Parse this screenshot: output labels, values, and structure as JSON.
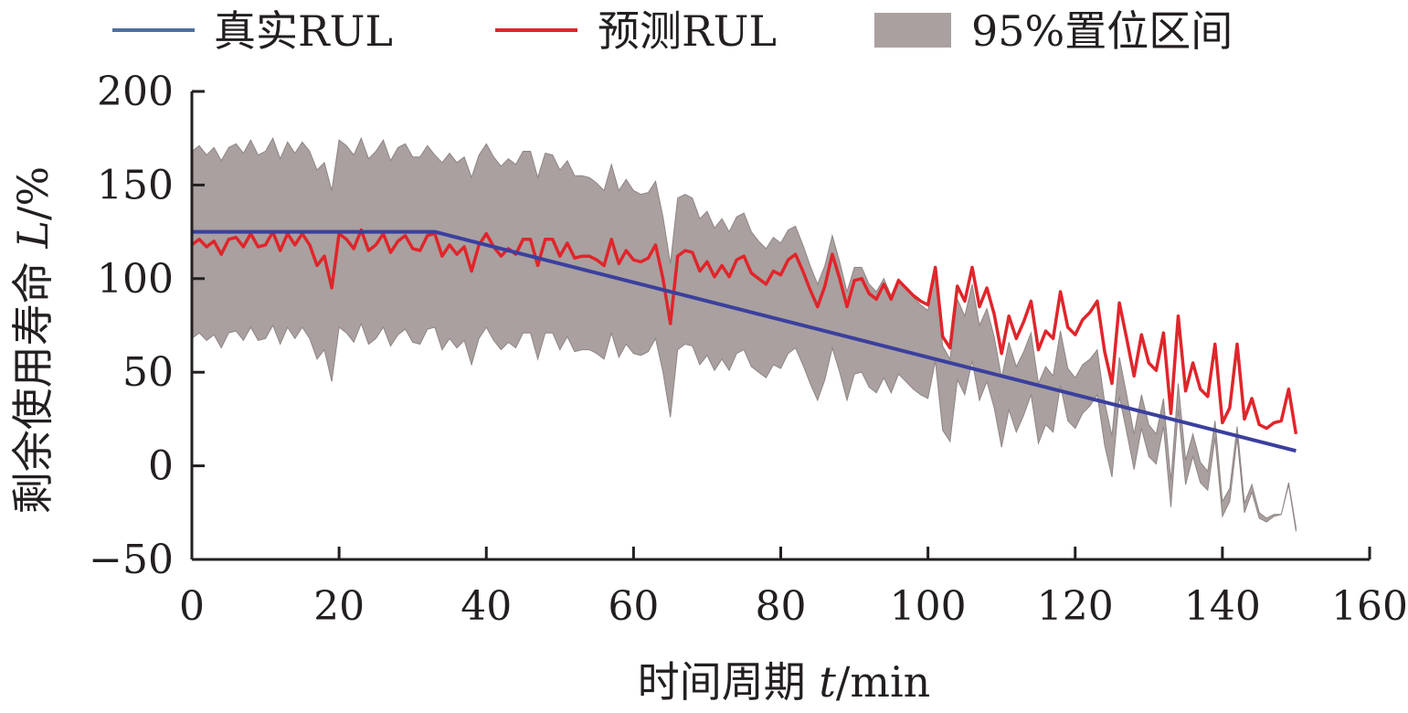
{
  "chart_data": {
    "type": "line",
    "xlabel_prefix": "时间周期 ",
    "xlabel_var": "t",
    "xlabel_unit": "/min",
    "ylabel_prefix": "剩余使用寿命 ",
    "ylabel_var": "L",
    "ylabel_unit": "/%",
    "xlim": [
      0,
      160
    ],
    "ylim": [
      -50,
      200
    ],
    "xticks": [
      0,
      20,
      40,
      60,
      80,
      100,
      120,
      140,
      160
    ],
    "yticks": [
      -50,
      0,
      50,
      100,
      150,
      200
    ],
    "ytick_labels": [
      "−50",
      "0",
      "50",
      "100",
      "150",
      "200"
    ],
    "grid": false,
    "legend_position": "top",
    "legend": [
      {
        "label": "真实RUL",
        "kind": "line",
        "color": "#4e6fa0"
      },
      {
        "label": "预测RUL",
        "kind": "line",
        "color": "#e0252b"
      },
      {
        "label": "95%置位区间",
        "kind": "area",
        "color": "#a9a09f"
      }
    ],
    "colors": {
      "true": "#3b3f9e",
      "pred": "#e0252b",
      "band": "#a9a09f",
      "band_edge": "#8e8584",
      "axis": "#231f20"
    },
    "series": [
      {
        "name": "真实RUL",
        "role": "true",
        "x": [
          0,
          33,
          150
        ],
        "y": [
          125,
          125,
          8
        ]
      },
      {
        "name": "预测RUL",
        "role": "pred",
        "x": [
          0,
          1,
          2,
          3,
          4,
          5,
          6,
          7,
          8,
          9,
          10,
          11,
          12,
          13,
          14,
          15,
          16,
          17,
          18,
          19,
          20,
          21,
          22,
          23,
          24,
          25,
          26,
          27,
          28,
          29,
          30,
          31,
          32,
          33,
          34,
          35,
          36,
          37,
          38,
          39,
          40,
          41,
          42,
          43,
          44,
          45,
          46,
          47,
          48,
          49,
          50,
          51,
          52,
          53,
          54,
          55,
          56,
          57,
          58,
          59,
          60,
          61,
          62,
          63,
          64,
          65,
          66,
          67,
          68,
          69,
          70,
          71,
          72,
          73,
          74,
          75,
          76,
          77,
          78,
          79,
          80,
          81,
          82,
          83,
          84,
          85,
          86,
          87,
          88,
          89,
          90,
          91,
          92,
          93,
          94,
          95,
          96,
          97,
          98,
          99,
          100,
          101,
          102,
          103,
          104,
          105,
          106,
          107,
          108,
          109,
          110,
          111,
          112,
          113,
          114,
          115,
          116,
          117,
          118,
          119,
          120,
          121,
          122,
          123,
          124,
          125,
          126,
          127,
          128,
          129,
          130,
          131,
          132,
          133,
          134,
          135,
          136,
          137,
          138,
          139,
          140,
          141,
          142,
          143,
          144,
          145,
          146,
          147,
          148,
          149,
          150
        ],
        "y": [
          118,
          121,
          117,
          120,
          113,
          121,
          122,
          117,
          124,
          117,
          118,
          125,
          115,
          124,
          118,
          124,
          118,
          107,
          112,
          95,
          124,
          121,
          116,
          126,
          115,
          118,
          124,
          114,
          120,
          123,
          116,
          115,
          123,
          124,
          112,
          118,
          113,
          117,
          104,
          118,
          124,
          117,
          112,
          116,
          113,
          121,
          121,
          107,
          121,
          121,
          112,
          119,
          111,
          112,
          112,
          110,
          107,
          121,
          108,
          115,
          110,
          109,
          111,
          118,
          100,
          76,
          112,
          115,
          114,
          104,
          109,
          101,
          107,
          101,
          110,
          112,
          103,
          100,
          97,
          104,
          102,
          110,
          113,
          104,
          94,
          85,
          96,
          113,
          100,
          85,
          99,
          100,
          92,
          89,
          97,
          89,
          99,
          95,
          91,
          88,
          86,
          106,
          69,
          63,
          96,
          88,
          106,
          85,
          95,
          81,
          60,
          80,
          68,
          77,
          88,
          62,
          72,
          68,
          93,
          74,
          70,
          78,
          82,
          88,
          61,
          44,
          87,
          68,
          48,
          70,
          55,
          51,
          71,
          28,
          80,
          40,
          55,
          41,
          37,
          65,
          23,
          31,
          65,
          25,
          36,
          22,
          20,
          23,
          24,
          41,
          17
        ]
      },
      {
        "name": "95%置位区间 上限",
        "role": "band_upper",
        "x": [
          0,
          1,
          2,
          3,
          4,
          5,
          6,
          7,
          8,
          9,
          10,
          11,
          12,
          13,
          14,
          15,
          16,
          17,
          18,
          19,
          20,
          21,
          22,
          23,
          24,
          25,
          26,
          27,
          28,
          29,
          30,
          31,
          32,
          33,
          34,
          35,
          36,
          37,
          38,
          39,
          40,
          41,
          42,
          43,
          44,
          45,
          46,
          47,
          48,
          49,
          50,
          51,
          52,
          53,
          54,
          55,
          56,
          57,
          58,
          59,
          60,
          61,
          62,
          63,
          64,
          65,
          66,
          67,
          68,
          69,
          70,
          71,
          72,
          73,
          74,
          75,
          76,
          77,
          78,
          79,
          80,
          81,
          82,
          83,
          84,
          85,
          86,
          87,
          88,
          89,
          90,
          91,
          92,
          93,
          94,
          95,
          96,
          97,
          98,
          99,
          100,
          101,
          102,
          103,
          104,
          105,
          106,
          107,
          108,
          109,
          110,
          111,
          112,
          113,
          114,
          115,
          116,
          117,
          118,
          119,
          120,
          121,
          122,
          123,
          124,
          125,
          126,
          127,
          128,
          129,
          130,
          131,
          132,
          133,
          134,
          135,
          136,
          137,
          138,
          139,
          140,
          141,
          142,
          143,
          144,
          145,
          146,
          147,
          148,
          149,
          150
        ],
        "y": [
          168,
          171,
          166,
          170,
          163,
          170,
          172,
          167,
          174,
          166,
          168,
          175,
          164,
          173,
          167,
          173,
          168,
          158,
          162,
          147,
          174,
          171,
          166,
          175,
          164,
          168,
          174,
          163,
          170,
          172,
          165,
          165,
          171,
          166,
          162,
          167,
          162,
          165,
          154,
          166,
          172,
          165,
          160,
          164,
          161,
          168,
          168,
          154,
          167,
          166,
          158,
          163,
          155,
          155,
          154,
          151,
          147,
          161,
          147,
          153,
          147,
          145,
          146,
          152,
          133,
          108,
          143,
          145,
          143,
          132,
          136,
          127,
          132,
          125,
          133,
          135,
          125,
          120,
          116,
          122,
          119,
          126,
          128,
          118,
          107,
          97,
          107,
          123,
          109,
          93,
          106,
          106,
          97,
          93,
          100,
          91,
          100,
          95,
          90,
          86,
          83,
          102,
          64,
          57,
          89,
          80,
          97,
          75,
          84,
          69,
          47,
          66,
          53,
          61,
          71,
          44,
          53,
          48,
          72,
          52,
          47,
          54,
          57,
          62,
          34,
          16,
          58,
          38,
          17,
          38,
          22,
          17,
          36,
          -8,
          44,
          3,
          17,
          2,
          -3,
          24,
          -19,
          -12,
          21,
          -20,
          -10,
          -25,
          -28,
          -26,
          -26,
          -10,
          -35
        ]
      },
      {
        "name": "95%置位区间 下限",
        "role": "band_lower",
        "x": [
          0,
          1,
          2,
          3,
          4,
          5,
          6,
          7,
          8,
          9,
          10,
          11,
          12,
          13,
          14,
          15,
          16,
          17,
          18,
          19,
          20,
          21,
          22,
          23,
          24,
          25,
          26,
          27,
          28,
          29,
          30,
          31,
          32,
          33,
          34,
          35,
          36,
          37,
          38,
          39,
          40,
          41,
          42,
          43,
          44,
          45,
          46,
          47,
          48,
          49,
          50,
          51,
          52,
          53,
          54,
          55,
          56,
          57,
          58,
          59,
          60,
          61,
          62,
          63,
          64,
          65,
          66,
          67,
          68,
          69,
          70,
          71,
          72,
          73,
          74,
          75,
          76,
          77,
          78,
          79,
          80,
          81,
          82,
          83,
          84,
          85,
          86,
          87,
          88,
          89,
          90,
          91,
          92,
          93,
          94,
          95,
          96,
          97,
          98,
          99,
          100,
          101,
          102,
          103,
          104,
          105,
          106,
          107,
          108,
          109,
          110,
          111,
          112,
          113,
          114,
          115,
          116,
          117,
          118,
          119,
          120,
          121,
          122,
          123,
          124,
          125,
          126,
          127,
          128,
          129,
          130,
          131,
          132,
          133,
          134,
          135,
          136,
          137,
          138,
          139,
          140,
          141,
          142,
          143,
          144,
          145,
          146,
          147,
          148,
          149,
          150
        ],
        "y": [
          68,
          71,
          67,
          70,
          63,
          71,
          72,
          67,
          74,
          67,
          68,
          75,
          65,
          74,
          68,
          74,
          68,
          57,
          62,
          45,
          74,
          71,
          66,
          76,
          65,
          68,
          74,
          64,
          70,
          73,
          66,
          65,
          73,
          74,
          62,
          68,
          63,
          67,
          54,
          68,
          74,
          67,
          62,
          66,
          63,
          71,
          71,
          57,
          71,
          71,
          62,
          69,
          61,
          62,
          62,
          60,
          57,
          71,
          58,
          65,
          60,
          59,
          61,
          68,
          50,
          26,
          62,
          65,
          64,
          54,
          59,
          51,
          57,
          51,
          60,
          62,
          53,
          50,
          47,
          54,
          52,
          60,
          63,
          54,
          44,
          35,
          46,
          63,
          50,
          35,
          49,
          50,
          42,
          39,
          47,
          39,
          49,
          45,
          41,
          38,
          36,
          56,
          19,
          13,
          46,
          38,
          56,
          35,
          45,
          31,
          10,
          30,
          18,
          27,
          38,
          12,
          22,
          18,
          43,
          24,
          20,
          28,
          32,
          38,
          11,
          -6,
          37,
          18,
          -2,
          20,
          5,
          1,
          21,
          -22,
          30,
          -10,
          5,
          -9,
          -13,
          15,
          -27,
          -19,
          15,
          -25,
          -14,
          -28,
          -30,
          -27,
          -26,
          -9,
          -33
        ]
      }
    ]
  }
}
